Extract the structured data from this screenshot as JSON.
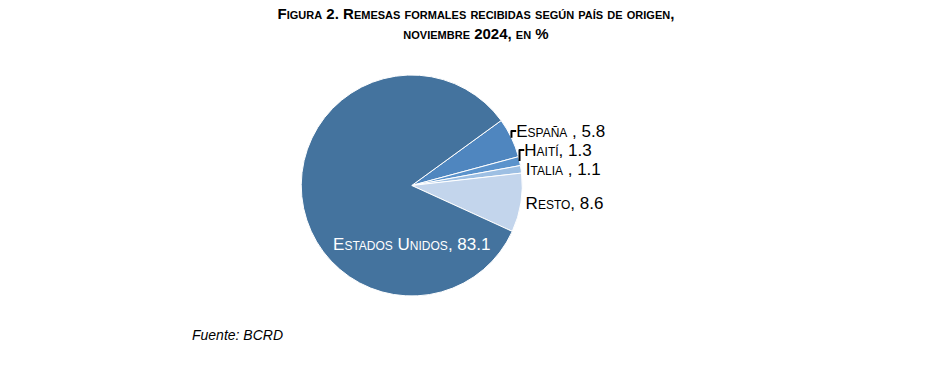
{
  "chart_data": {
    "type": "pie",
    "title": [
      "Figura 2. Remesas formales recibidas según país de origen,",
      "noviembre 2024, en %"
    ],
    "categories": [
      "España",
      "Haití",
      "Italia",
      "Resto",
      "Estados Unidos"
    ],
    "values": [
      5.8,
      1.3,
      1.1,
      8.6,
      83.1
    ],
    "value_labels": [
      "España , 5.8",
      "Haití, 1.3",
      "Italia , 1.1",
      "Resto, 8.6",
      "Estados Unidos, 83.1"
    ],
    "colors": [
      "#4f86bf",
      "#5b93cc",
      "#9dbfe3",
      "#c3d5ec",
      "#44739e"
    ],
    "data_labels": true,
    "source": "Fuente: BCRD"
  }
}
